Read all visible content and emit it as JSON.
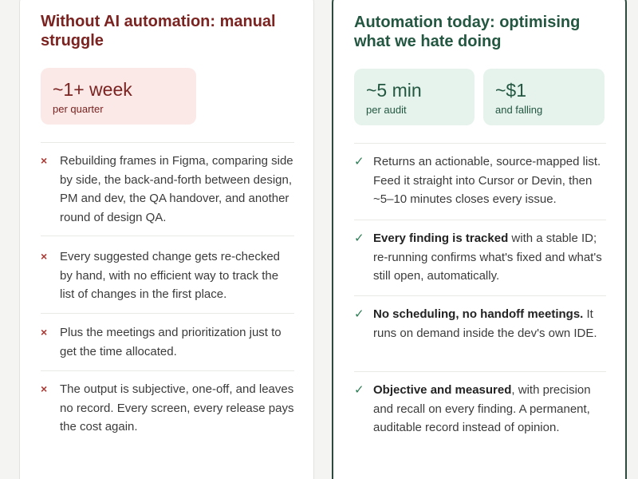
{
  "left": {
    "title": "Without AI automation: manual struggle",
    "stat": {
      "value": "~1+ week",
      "unit": "per quarter"
    },
    "items": [
      {
        "text": "Rebuilding frames in Figma, comparing side by side, the back-and-forth between design, PM and dev, the QA handover, and another round of design QA."
      },
      {
        "text": "Every suggested change gets re-checked by hand, with no efficient way to track the list of changes in the first place."
      },
      {
        "text": "Plus the meetings and prioritization just to get the time allocated."
      },
      {
        "text": "The output is subjective, one-off, and leaves no record. Every screen, every release pays the cost again."
      }
    ]
  },
  "right": {
    "title": "Automation today: optimising what we hate doing",
    "stats": [
      {
        "value": "~5 min",
        "unit": "per audit"
      },
      {
        "value": "~$1",
        "unit": "and falling"
      }
    ],
    "items": [
      {
        "bold": "",
        "text": "Returns an actionable, source-mapped list. Feed it straight into Cursor or Devin, then ~5–10 minutes closes every issue."
      },
      {
        "bold": "Every finding is tracked",
        "text": " with a stable ID; re-running confirms what's fixed and what's still open, automatically."
      },
      {
        "bold": "No scheduling, no handoff meetings.",
        "text": " It runs on demand inside the dev's own IDE."
      },
      {
        "bold": "Objective and measured",
        "text": ", with precision and recall on every finding. A permanent, auditable record instead of opinion."
      }
    ]
  },
  "colors": {
    "left_accent": "#7a2320",
    "left_stat_bg": "#fbe9e8",
    "right_accent": "#245742",
    "right_stat_bg": "#e5f3ec",
    "right_border": "#2c4a3e"
  },
  "icons": {
    "left_marker": "cross-icon",
    "right_marker": "check-icon"
  },
  "marks": {
    "cross": "×",
    "check": "✓"
  }
}
